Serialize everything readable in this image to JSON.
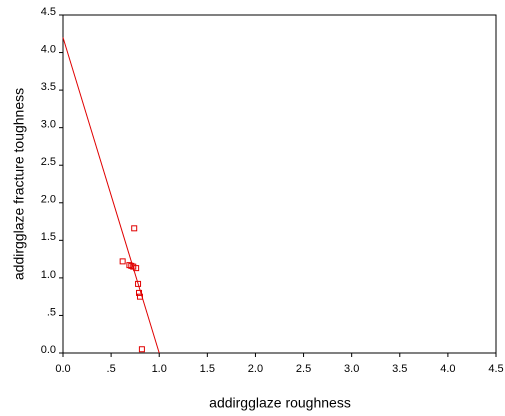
{
  "chart_data": {
    "type": "scatter",
    "x_label": "addirgglaze roughness",
    "y_label": "addirgglaze fracture toughness",
    "x": [
      0.62,
      0.74,
      0.69,
      0.71,
      0.73,
      0.76,
      0.78,
      0.79,
      0.8,
      0.82
    ],
    "values": [
      1.22,
      1.66,
      1.17,
      1.16,
      1.15,
      1.13,
      0.92,
      0.8,
      0.75,
      0.05
    ],
    "color": "#e00000",
    "fit_line": {
      "x": [
        0,
        1.0
      ],
      "values": [
        4.2,
        0
      ]
    },
    "xlim": [
      0,
      4.5
    ],
    "xticks": [
      {
        "value": 0,
        "label": "0.0"
      },
      {
        "value": 0.5,
        "label": ".5"
      },
      {
        "value": 1,
        "label": "1.0"
      },
      1.5,
      {
        "value": 2,
        "label": "2.0"
      },
      2.5,
      {
        "value": 3,
        "label": "3.0"
      },
      3.5,
      {
        "value": 4,
        "label": "4.0"
      },
      4.5
    ],
    "ylim": [
      0,
      4.5
    ],
    "yticks": [
      {
        "value": 0,
        "label": "0.0"
      },
      {
        "value": 0.5,
        "label": ".5"
      },
      {
        "value": 1,
        "label": "1.0"
      },
      1.5,
      {
        "value": 2,
        "label": "2.0"
      },
      2.5,
      {
        "value": 3,
        "label": "3.0"
      },
      3.5,
      {
        "value": 4,
        "label": "4.0"
      },
      4.5
    ],
    "grid": false
  }
}
